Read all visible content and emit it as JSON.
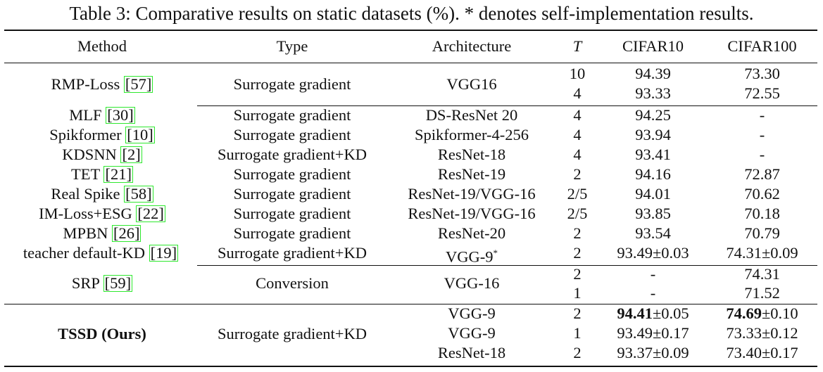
{
  "caption": "Table 3: Comparative results on static datasets (%). * denotes self-implementation results.",
  "headers": [
    "Method",
    "Type",
    "Architecture",
    "T",
    "CIFAR10",
    "CIFAR100"
  ],
  "rows": [
    {
      "method": "RMP-Loss",
      "ref": "57",
      "type": "Surrogate gradient",
      "arch": "VGG16",
      "entries": [
        {
          "T": "10",
          "c10": "94.39",
          "c100": "73.30"
        },
        {
          "T": "4",
          "c10": "93.33",
          "c100": "72.55"
        }
      ]
    },
    {
      "method": "MLF",
      "ref": "30",
      "type": "Surrogate gradient",
      "arch": "DS-ResNet 20",
      "T": "4",
      "c10": "94.25",
      "c100": "-"
    },
    {
      "method": "Spikformer",
      "ref": "10",
      "type": "Surrogate gradient",
      "arch": "Spikformer-4-256",
      "T": "4",
      "c10": "93.94",
      "c100": "-"
    },
    {
      "method": "KDSNN",
      "ref": "2",
      "type": "Surrogate gradient+KD",
      "arch": "ResNet-18",
      "T": "4",
      "c10": "93.41",
      "c100": "-"
    },
    {
      "method": "TET",
      "ref": "21",
      "type": "Surrogate gradient",
      "arch": "ResNet-19",
      "T": "2",
      "c10": "94.16",
      "c100": "72.87"
    },
    {
      "method": "Real Spike",
      "ref": "58",
      "type": "Surrogate gradient",
      "arch": "ResNet-19/VGG-16",
      "T": "2/5",
      "c10": "94.01",
      "c100": "70.62"
    },
    {
      "method": "IM-Loss+ESG",
      "ref": "22",
      "type": "Surrogate gradient",
      "arch": "ResNet-19/VGG-16",
      "T": "2/5",
      "c10": "93.85",
      "c100": "70.18"
    },
    {
      "method": "MPBN",
      "ref": "26",
      "type": "Surrogate gradient",
      "arch": "ResNet-20",
      "T": "2",
      "c10": "93.54",
      "c100": "70.79"
    },
    {
      "method": "teacher default-KD",
      "ref": "19",
      "type": "Surrogate gradient+KD",
      "arch": "VGG-9",
      "arch_sup": "*",
      "T": "2",
      "c10": "93.49±0.03",
      "c100": "74.31±0.09"
    },
    {
      "method": "SRP",
      "ref": "59",
      "type": "Conversion",
      "arch": "VGG-16",
      "entries": [
        {
          "T": "2",
          "c10": "-",
          "c100": "74.31"
        },
        {
          "T": "1",
          "c10": "-",
          "c100": "71.52"
        }
      ]
    },
    {
      "method": "TSSD (Ours)",
      "type": "Surrogate gradient+KD",
      "entries": [
        {
          "arch": "VGG-9",
          "T": "2",
          "c10_bold": "94.41",
          "c10_rest": "±0.05",
          "c100_bold": "74.69",
          "c100_rest": "±0.10"
        },
        {
          "arch": "VGG-9",
          "T": "1",
          "c10": "93.49±0.17",
          "c100": "73.33±0.12"
        },
        {
          "arch": "ResNet-18",
          "T": "2",
          "c10": "93.37±0.09",
          "c100": "73.40±0.17"
        }
      ]
    }
  ]
}
